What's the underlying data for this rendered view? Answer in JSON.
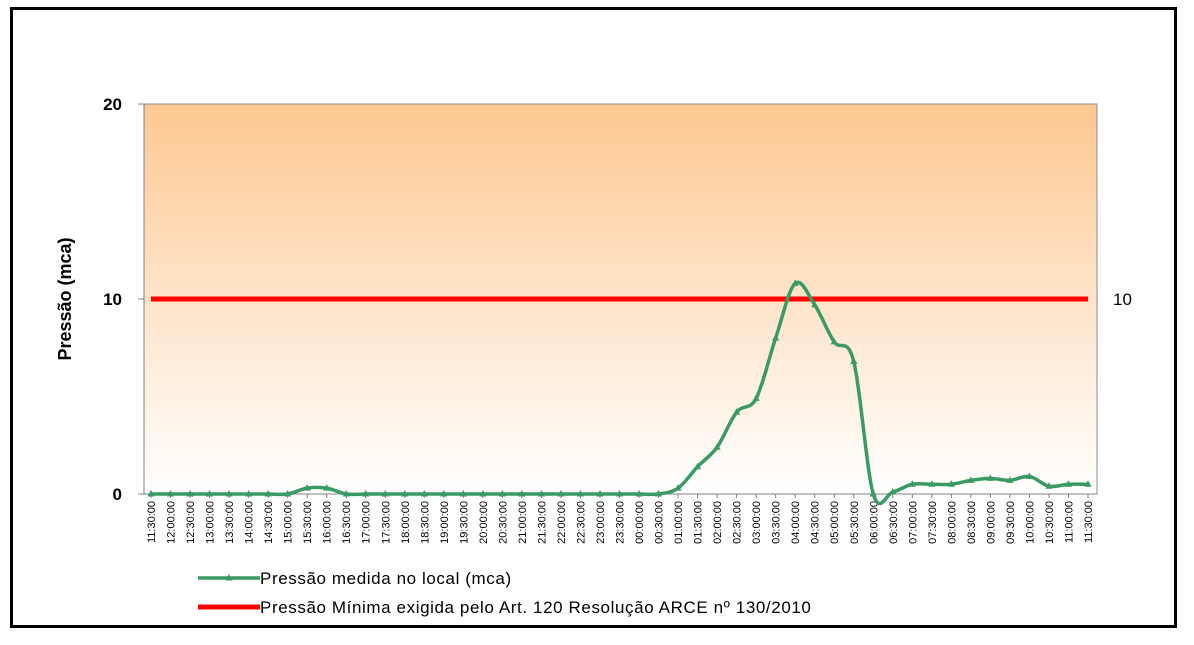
{
  "chart_data": {
    "type": "line",
    "ylabel": "Pressão (mca)",
    "xlabel": "",
    "title": "",
    "ylim": [
      0,
      20
    ],
    "yticks": [
      "0",
      "10",
      "20"
    ],
    "grid": false,
    "legend_position": "bottom",
    "x": [
      "11:30:00",
      "12:00:00",
      "12:30:00",
      "13:00:00",
      "13:30:00",
      "14:00:00",
      "14:30:00",
      "15:00:00",
      "15:30:00",
      "16:00:00",
      "16:30:00",
      "17:00:00",
      "17:30:00",
      "18:00:00",
      "18:30:00",
      "19:00:00",
      "19:30:00",
      "20:00:00",
      "20:30:00",
      "21:00:00",
      "21:30:00",
      "22:00:00",
      "22:30:00",
      "23:00:00",
      "23:30:00",
      "00:00:00",
      "00:30:00",
      "01:00:00",
      "01:30:00",
      "02:00:00",
      "02:30:00",
      "03:00:00",
      "03:30:00",
      "04:00:00",
      "04:30:00",
      "05:00:00",
      "05:30:00",
      "06:00:00",
      "06:30:00",
      "07:00:00",
      "07:30:00",
      "08:00:00",
      "08:30:00",
      "09:00:00",
      "09:30:00",
      "10:00:00",
      "10:30:00",
      "11:00:00",
      "11:30:00"
    ],
    "series": [
      {
        "name": "Pressão medida no local (mca)",
        "color": "#3a9a63",
        "values": [
          0,
          0,
          0,
          0,
          0,
          0,
          0,
          0,
          0.3,
          0.3,
          0,
          0,
          0,
          0,
          0,
          0,
          0,
          0,
          0,
          0,
          0,
          0,
          0,
          0,
          0,
          0,
          0,
          0.3,
          1.4,
          2.4,
          4.2,
          4.9,
          8.0,
          10.8,
          9.7,
          7.8,
          6.8,
          0,
          0.1,
          0.5,
          0.5,
          0.5,
          0.7,
          0.8,
          0.7,
          0.9,
          0.4,
          0.5,
          0.5
        ]
      },
      {
        "name": "Pressão Mínima exigida pelo Art. 120 Resolução ARCE nº 130/2010",
        "color": "#ff0000",
        "values": [
          10,
          10,
          10,
          10,
          10,
          10,
          10,
          10,
          10,
          10,
          10,
          10,
          10,
          10,
          10,
          10,
          10,
          10,
          10,
          10,
          10,
          10,
          10,
          10,
          10,
          10,
          10,
          10,
          10,
          10,
          10,
          10,
          10,
          10,
          10,
          10,
          10,
          10,
          10,
          10,
          10,
          10,
          10,
          10,
          10,
          10,
          10,
          10,
          10
        ]
      }
    ],
    "annotations": [
      {
        "text": "10",
        "series": 1
      }
    ],
    "background_gradient": {
      "top": "#fdc892",
      "bottom": "#ffffff"
    }
  }
}
